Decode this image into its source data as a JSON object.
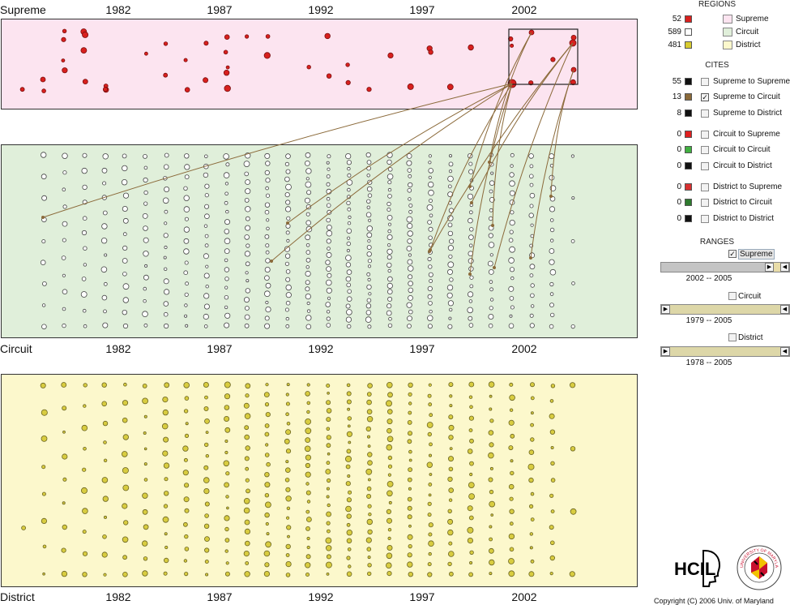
{
  "bands": {
    "supreme": {
      "label": "Supreme",
      "fill": "#fce4f0"
    },
    "circuit": {
      "label": "Circuit",
      "fill": "#e0efda"
    },
    "district": {
      "label": "District",
      "fill": "#fcf8cc"
    }
  },
  "years": [
    "1982",
    "1987",
    "1992",
    "1997",
    "2002"
  ],
  "sidebar": {
    "regions_title": "REGIONS",
    "regions": [
      {
        "count": "52",
        "color": "#d8201e",
        "box": "#fce4f0",
        "label": "Supreme"
      },
      {
        "count": "589",
        "color": "#ffffff",
        "box": "#e0efda",
        "label": "Circuit"
      },
      {
        "count": "481",
        "color": "#d8cc30",
        "box": "#fcf8cc",
        "label": "District"
      }
    ],
    "cites_title": "CITES",
    "cites": [
      {
        "count": "55",
        "color": "#111111",
        "checked": false,
        "label": "Supreme to Supreme"
      },
      {
        "count": "13",
        "color": "#8b6a3a",
        "checked": true,
        "label": "Supreme to Circuit"
      },
      {
        "count": "8",
        "color": "#111111",
        "checked": false,
        "label": "Supreme to District"
      },
      {
        "count": "0",
        "color": "#e02020",
        "checked": false,
        "label": "Circuit to Supreme"
      },
      {
        "count": "0",
        "color": "#40b040",
        "checked": false,
        "label": "Circuit to Circuit"
      },
      {
        "count": "0",
        "color": "#111111",
        "checked": false,
        "label": "Circuit to District"
      },
      {
        "count": "0",
        "color": "#d83030",
        "checked": false,
        "label": "District to Supreme"
      },
      {
        "count": "0",
        "color": "#2e7a2e",
        "checked": false,
        "label": "District to Circuit"
      },
      {
        "count": "0",
        "color": "#111111",
        "checked": false,
        "label": "District to District"
      }
    ],
    "ranges_title": "RANGES",
    "ranges": [
      {
        "label": "Supreme",
        "checked": true,
        "value": "2002  --  2005"
      },
      {
        "label": "Circuit",
        "checked": false,
        "value": "1979  --  2005"
      },
      {
        "label": "District",
        "checked": false,
        "value": "1978  --  2005"
      }
    ]
  },
  "logos": {
    "hcil": "HCIL",
    "umd_ring": "UNIVERSITY OF MARYLAND"
  },
  "copyright": "Copyright (C) 2006   Univ. of Maryland"
}
